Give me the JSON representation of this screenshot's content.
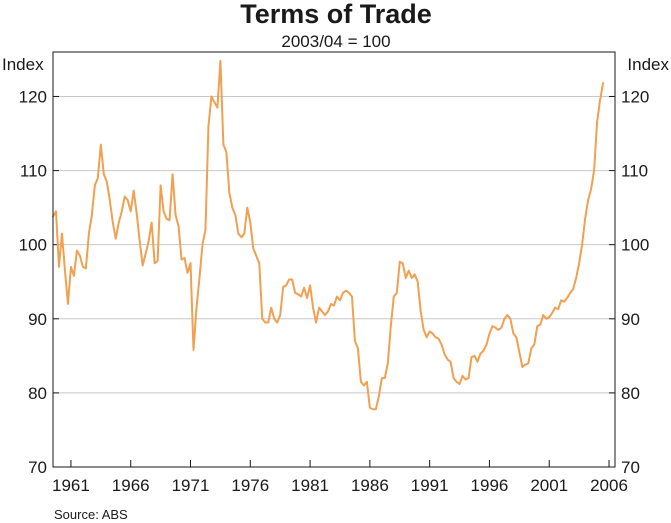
{
  "chart_data": {
    "type": "line",
    "title": "Terms of Trade",
    "subtitle": "2003/04 = 100",
    "ylabel_left": "Index",
    "ylabel_right": "Index",
    "xlabel": "",
    "source": "Source: ABS",
    "ylim": [
      70,
      126
    ],
    "yticks": [
      70,
      80,
      90,
      100,
      110,
      120
    ],
    "xlim": [
      1959.5,
      2006.5
    ],
    "xticks": [
      1961,
      1966,
      1971,
      1976,
      1981,
      1986,
      1991,
      1996,
      2001,
      2006
    ],
    "grid": true,
    "line_color": "#f0a050",
    "series": [
      {
        "name": "Terms of Trade",
        "x": [
          1959.5,
          1959.75,
          1960.0,
          1960.25,
          1960.5,
          1960.75,
          1961.0,
          1961.25,
          1961.5,
          1961.75,
          1962.0,
          1962.25,
          1962.5,
          1962.75,
          1963.0,
          1963.25,
          1963.5,
          1963.75,
          1964.0,
          1964.25,
          1964.5,
          1964.75,
          1965.0,
          1965.25,
          1965.5,
          1965.75,
          1966.0,
          1966.25,
          1966.5,
          1966.75,
          1967.0,
          1967.25,
          1967.5,
          1967.75,
          1968.0,
          1968.25,
          1968.5,
          1968.75,
          1969.0,
          1969.25,
          1969.5,
          1969.75,
          1970.0,
          1970.25,
          1970.5,
          1970.75,
          1971.0,
          1971.25,
          1971.5,
          1971.75,
          1972.0,
          1972.25,
          1972.5,
          1972.75,
          1973.0,
          1973.25,
          1973.5,
          1973.75,
          1974.0,
          1974.25,
          1974.5,
          1974.75,
          1975.0,
          1975.25,
          1975.5,
          1975.75,
          1976.0,
          1976.25,
          1976.5,
          1976.75,
          1977.0,
          1977.25,
          1977.5,
          1977.75,
          1978.0,
          1978.25,
          1978.5,
          1978.75,
          1979.0,
          1979.25,
          1979.5,
          1979.75,
          1980.0,
          1980.25,
          1980.5,
          1980.75,
          1981.0,
          1981.25,
          1981.5,
          1981.75,
          1982.0,
          1982.25,
          1982.5,
          1982.75,
          1983.0,
          1983.25,
          1983.5,
          1983.75,
          1984.0,
          1984.25,
          1984.5,
          1984.75,
          1985.0,
          1985.25,
          1985.5,
          1985.75,
          1986.0,
          1986.25,
          1986.5,
          1986.75,
          1987.0,
          1987.25,
          1987.5,
          1987.75,
          1988.0,
          1988.25,
          1988.5,
          1988.75,
          1989.0,
          1989.25,
          1989.5,
          1989.75,
          1990.0,
          1990.25,
          1990.5,
          1990.75,
          1991.0,
          1991.25,
          1991.5,
          1991.75,
          1992.0,
          1992.25,
          1992.5,
          1992.75,
          1993.0,
          1993.25,
          1993.5,
          1993.75,
          1994.0,
          1994.25,
          1994.5,
          1994.75,
          1995.0,
          1995.25,
          1995.5,
          1995.75,
          1996.0,
          1996.25,
          1996.5,
          1996.75,
          1997.0,
          1997.25,
          1997.5,
          1997.75,
          1998.0,
          1998.25,
          1998.5,
          1998.75,
          1999.0,
          1999.25,
          1999.5,
          1999.75,
          2000.0,
          2000.25,
          2000.5,
          2000.75,
          2001.0,
          2001.25,
          2001.5,
          2001.75,
          2002.0,
          2002.25,
          2002.5,
          2002.75,
          2003.0,
          2003.25,
          2003.5,
          2003.75,
          2004.0,
          2004.25,
          2004.5,
          2004.75,
          2005.0,
          2005.25,
          2005.5
        ],
        "values": [
          103.8,
          104.5,
          97.0,
          101.5,
          96.5,
          92.0,
          97.0,
          95.8,
          99.2,
          98.5,
          97.0,
          96.8,
          101.5,
          104.0,
          108.0,
          109.0,
          113.5,
          109.5,
          108.5,
          106.0,
          103.0,
          100.8,
          103.0,
          104.5,
          106.5,
          106.0,
          104.5,
          107.3,
          104.2,
          100.5,
          97.2,
          98.8,
          100.5,
          103.0,
          97.5,
          97.8,
          108.0,
          104.5,
          103.5,
          103.3,
          109.5,
          104.0,
          102.5,
          98.0,
          98.2,
          96.2,
          97.5,
          85.8,
          91.5,
          95.5,
          100.0,
          102.0,
          116.0,
          120.0,
          119.2,
          118.5,
          124.8,
          113.5,
          112.5,
          107.0,
          105.0,
          104.0,
          101.5,
          101.0,
          101.5,
          105.0,
          103.0,
          99.5,
          98.5,
          97.5,
          90.0,
          89.5,
          89.5,
          91.5,
          90.0,
          89.5,
          90.5,
          94.3,
          94.5,
          95.3,
          95.3,
          93.5,
          93.3,
          93.0,
          94.2,
          92.8,
          94.5,
          91.5,
          89.5,
          91.5,
          91.0,
          90.5,
          91.0,
          92.0,
          91.8,
          93.0,
          92.5,
          93.5,
          93.8,
          93.5,
          93.0,
          87.0,
          86.0,
          81.5,
          81.0,
          81.5,
          78.0,
          77.8,
          77.8,
          79.5,
          82.0,
          82.0,
          84.0,
          89.0,
          93.0,
          93.5,
          97.7,
          97.5,
          95.5,
          96.5,
          95.5,
          96.0,
          95.0,
          91.0,
          88.5,
          87.5,
          88.3,
          88.0,
          87.5,
          87.3,
          86.5,
          85.2,
          84.5,
          84.2,
          82.0,
          81.5,
          81.2,
          82.3,
          81.8,
          82.0,
          84.8,
          85.0,
          84.2,
          85.3,
          85.7,
          86.5,
          88.0,
          89.0,
          88.8,
          88.5,
          88.8,
          90.0,
          90.5,
          90.0,
          88.0,
          87.5,
          85.5,
          83.5,
          83.8,
          84.0,
          86.0,
          86.5,
          89.0,
          89.2,
          90.5,
          90.0,
          90.2,
          90.8,
          91.5,
          91.3,
          92.5,
          92.3,
          92.8,
          93.5,
          94.0,
          95.5,
          97.5,
          100.0,
          103.5,
          106.0,
          107.5,
          110.0,
          116.5,
          119.5,
          121.8
        ]
      }
    ]
  }
}
